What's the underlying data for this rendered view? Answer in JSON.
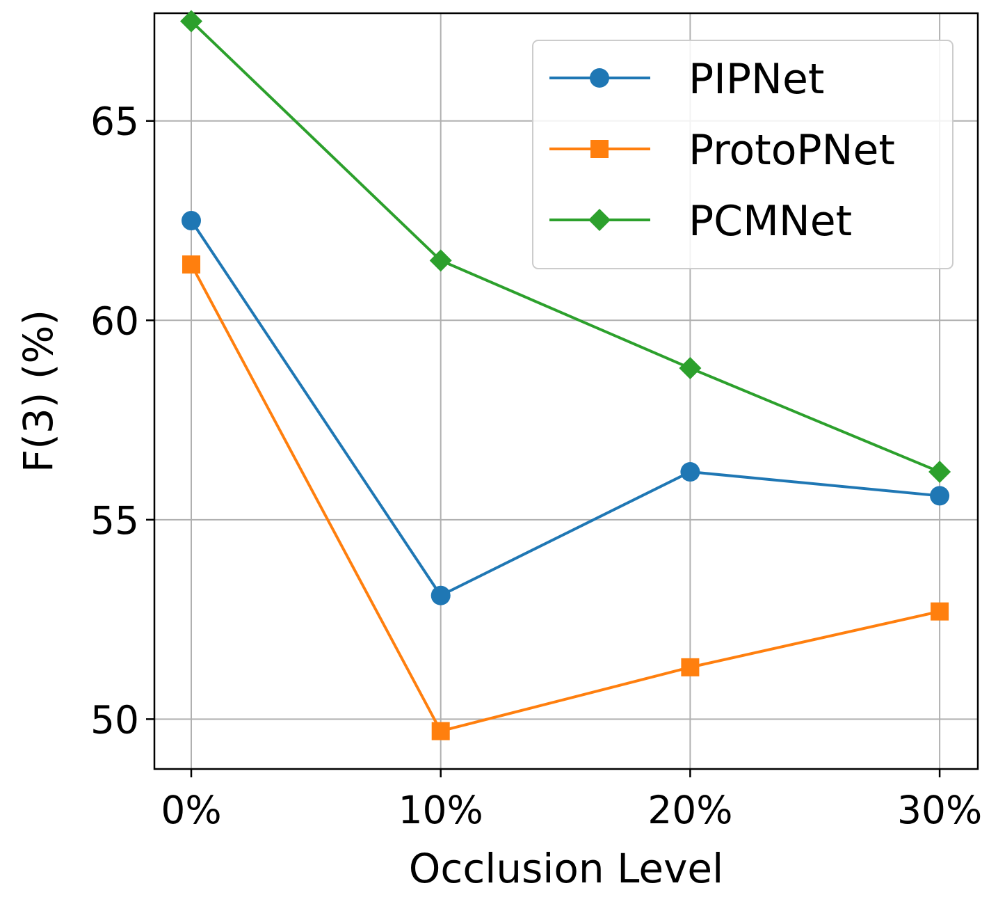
{
  "chart_data": {
    "type": "line",
    "title": "",
    "xlabel": "Occlusion Level",
    "ylabel": "F(3) (%)",
    "categories": [
      "0%",
      "10%",
      "20%",
      "30%"
    ],
    "yticks": [
      "50",
      "55",
      "60",
      "65"
    ],
    "ytick_values": [
      50,
      55,
      60,
      65
    ],
    "ylim": [
      48.75,
      67.7
    ],
    "grid": true,
    "legend_position": "top-right",
    "series": [
      {
        "name": "PIPNet",
        "color": "#1f77b4",
        "marker": "circle",
        "values": [
          62.5,
          53.1,
          56.2,
          55.6
        ]
      },
      {
        "name": "ProtoPNet",
        "color": "#ff7f0e",
        "marker": "square",
        "values": [
          61.4,
          49.7,
          51.3,
          52.7
        ]
      },
      {
        "name": "PCMNet",
        "color": "#2ca02c",
        "marker": "diamond",
        "values": [
          67.5,
          61.5,
          58.8,
          56.2
        ]
      }
    ]
  }
}
